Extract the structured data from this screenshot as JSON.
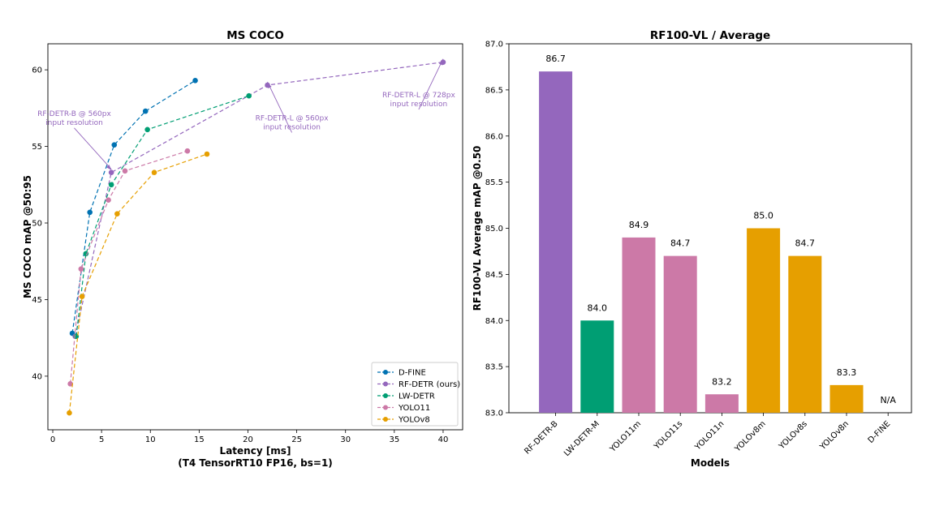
{
  "colors": {
    "D-FINE": "#0072b2",
    "RF-DETR (ours)": "#9467bd",
    "LW-DETR": "#009e73",
    "YOLO11": "#cc79a7",
    "YOLOv8": "#e69f00"
  },
  "chart_data": [
    {
      "type": "line",
      "title": "MS COCO",
      "xlabel": "Latency [ms]",
      "xlabel2": "(T4 TensorRT10 FP16, bs=1)",
      "ylabel": "MS COCO mAP @50:95",
      "xlim": [
        -0.5,
        42
      ],
      "ylim": [
        36.5,
        61.7
      ],
      "xticks": [
        0,
        5,
        10,
        15,
        20,
        25,
        30,
        35,
        40
      ],
      "yticks": [
        40,
        45,
        50,
        55,
        60
      ],
      "legend_position": "lower-right",
      "series": [
        {
          "name": "D-FINE",
          "x": [
            2.0,
            3.8,
            6.3,
            9.5,
            14.6
          ],
          "y": [
            42.8,
            50.7,
            55.1,
            57.3,
            59.3
          ]
        },
        {
          "name": "RF-DETR (ours)",
          "x": [
            2.3,
            6.0,
            22.0,
            40.0
          ],
          "y": [
            42.6,
            53.3,
            59.0,
            60.5
          ]
        },
        {
          "name": "LW-DETR",
          "x": [
            2.4,
            3.4,
            6.0,
            9.7,
            20.1
          ],
          "y": [
            42.6,
            48.0,
            52.5,
            56.1,
            58.3
          ]
        },
        {
          "name": "YOLO11",
          "x": [
            1.8,
            2.9,
            5.7,
            7.4,
            13.8
          ],
          "y": [
            39.5,
            47.0,
            51.5,
            53.4,
            54.7
          ]
        },
        {
          "name": "YOLOv8",
          "x": [
            1.7,
            3.0,
            6.6,
            10.4,
            15.8
          ],
          "y": [
            37.6,
            45.2,
            50.6,
            53.3,
            54.5
          ]
        }
      ],
      "annotations": [
        {
          "lines": [
            "RF-DETR-B @ 560px",
            "input resolution"
          ],
          "target": [
            6.0,
            53.3
          ],
          "text_at": [
            2.2,
            57.0
          ]
        },
        {
          "lines": [
            "RF-DETR-L @ 560px",
            "input resolution"
          ],
          "target": [
            22.0,
            59.0
          ],
          "text_at": [
            24.5,
            56.7
          ]
        },
        {
          "lines": [
            "RF-DETR-L @ 728px",
            "input resolution"
          ],
          "target": [
            40.0,
            60.5
          ],
          "text_at": [
            37.5,
            58.2
          ]
        }
      ]
    },
    {
      "type": "bar",
      "title": "RF100-VL / Average",
      "xlabel": "Models",
      "ylabel": "RF100-VL Average mAP @0.50",
      "ylim": [
        83.0,
        87.0
      ],
      "yticks": [
        "83.0",
        "83.5",
        "84.0",
        "84.5",
        "85.0",
        "85.5",
        "86.0",
        "86.5",
        "87.0"
      ],
      "categories": [
        "RF-DETR-B",
        "LW-DETR-M",
        "YOLO11m",
        "YOLO11s",
        "YOLO11n",
        "YOLOv8m",
        "YOLOv8s",
        "YOLOv8n",
        "D-FINE"
      ],
      "values": [
        86.7,
        84.0,
        84.9,
        84.7,
        83.2,
        85.0,
        84.7,
        83.3,
        null
      ],
      "labels": [
        "86.7",
        "84.0",
        "84.9",
        "84.7",
        "83.2",
        "85.0",
        "84.7",
        "83.3",
        "N/A"
      ],
      "bar_colors": [
        "#9467bd",
        "#009e73",
        "#cc79a7",
        "#cc79a7",
        "#cc79a7",
        "#e69f00",
        "#e69f00",
        "#e69f00",
        "#0072b2"
      ]
    }
  ]
}
